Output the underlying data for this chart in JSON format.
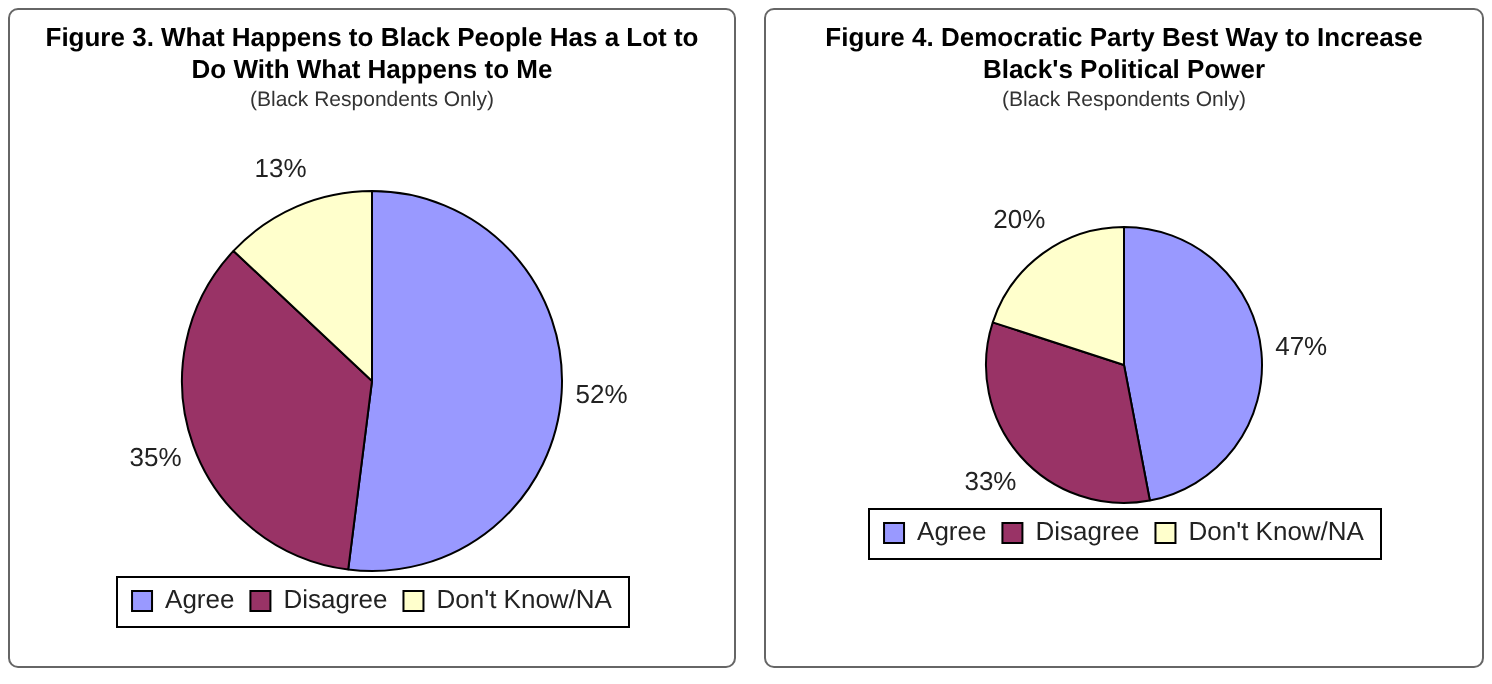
{
  "chart_data": [
    {
      "type": "pie",
      "title": "Figure 3. What Happens to Black People Has a Lot to Do With What Happens to Me",
      "subtitle": "(Black Respondents Only)",
      "categories": [
        "Agree",
        "Disagree",
        "Don't Know/NA"
      ],
      "values": [
        52,
        35,
        13
      ],
      "colors": [
        "#9999ff",
        "#993366",
        "#ffffcc"
      ],
      "value_labels": [
        "52%",
        "35%",
        "13%"
      ],
      "legend": "bottom"
    },
    {
      "type": "pie",
      "title": "Figure 4. Democratic Party Best Way to Increase Black's Political Power",
      "subtitle": "(Black Respondents Only)",
      "categories": [
        "Agree",
        "Disagree",
        "Don't Know/NA"
      ],
      "values": [
        47,
        33,
        20
      ],
      "colors": [
        "#9999ff",
        "#993366",
        "#ffffcc"
      ],
      "value_labels": [
        "47%",
        "33%",
        "20%"
      ],
      "legend": "bottom"
    }
  ]
}
